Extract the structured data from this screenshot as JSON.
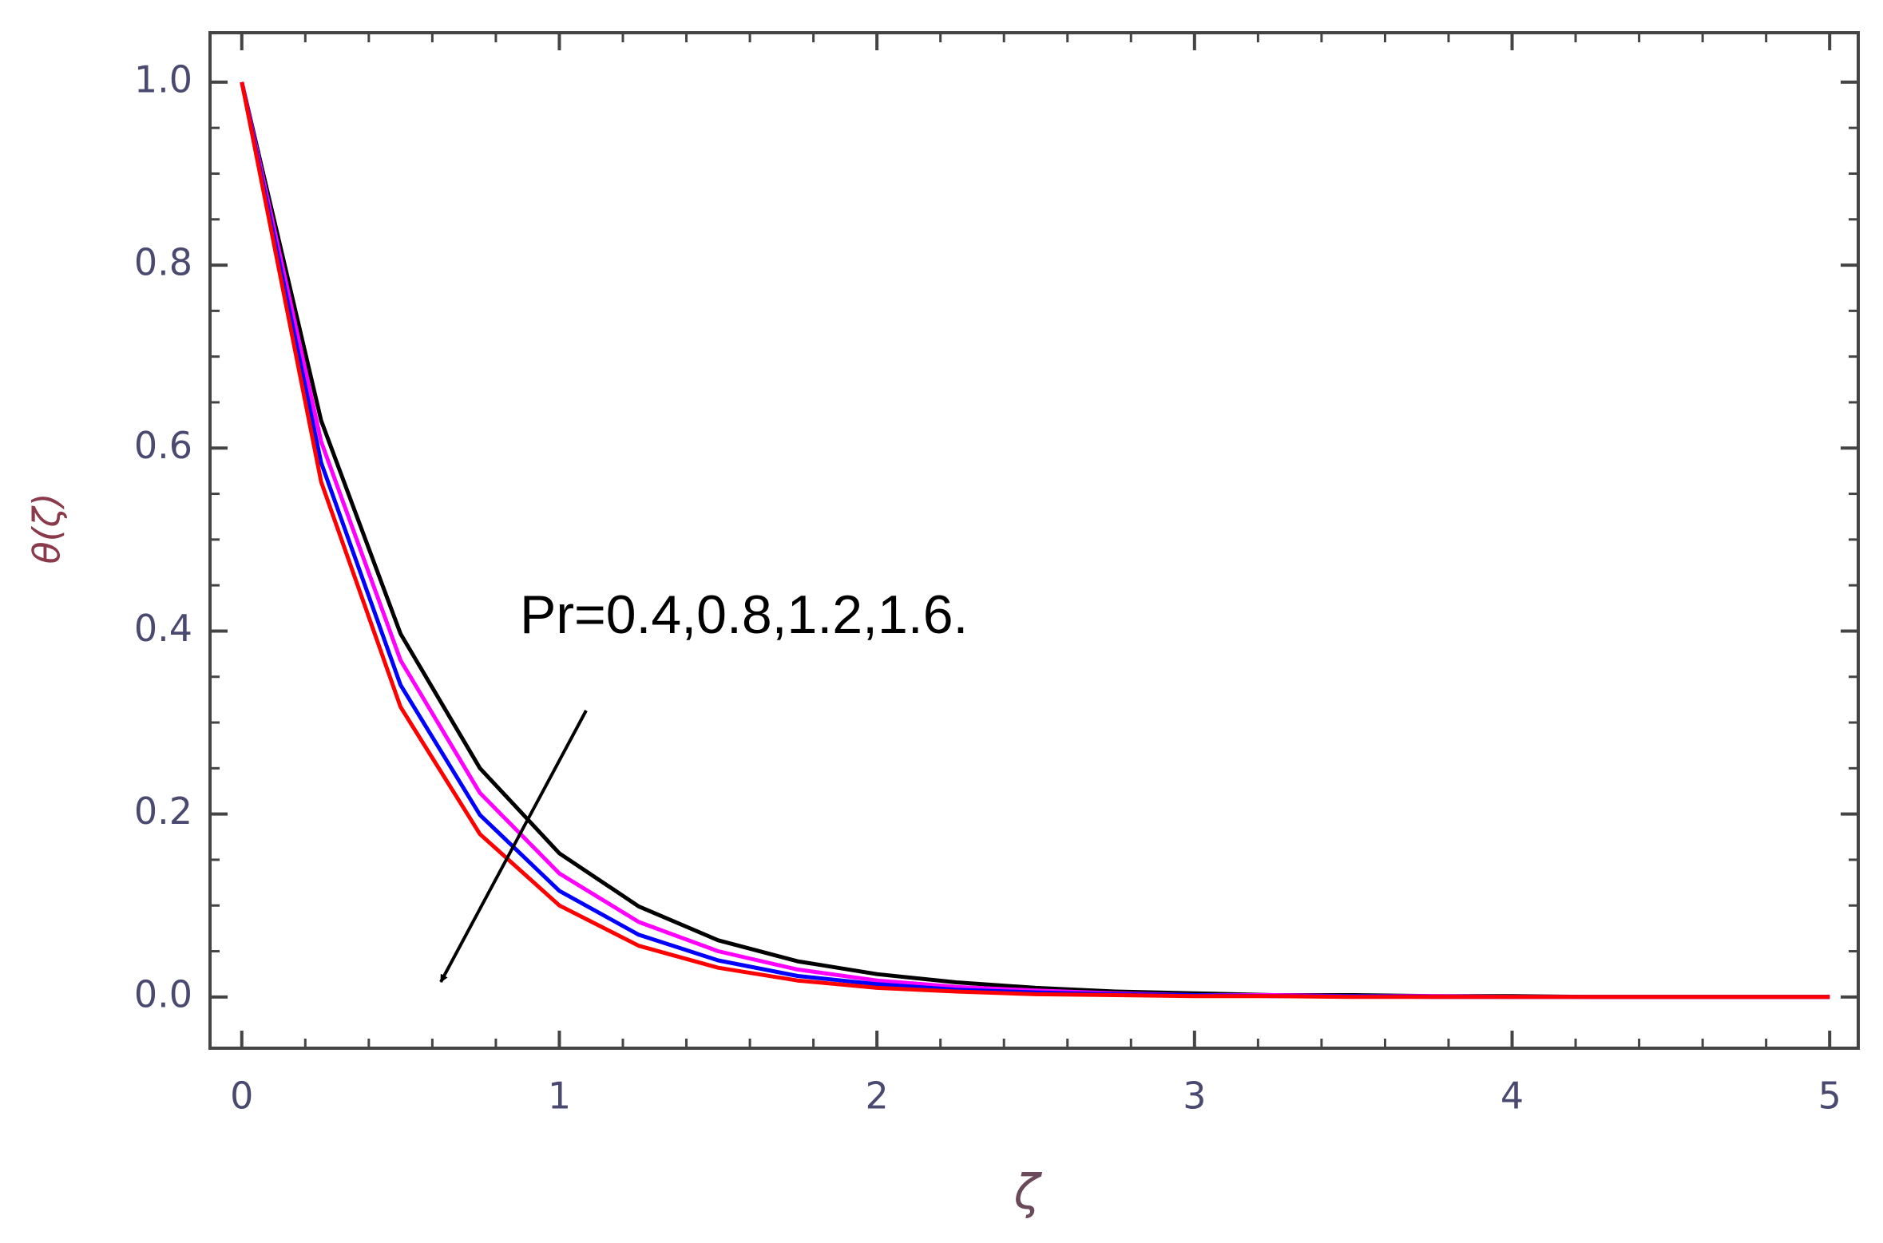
{
  "chart_data": {
    "type": "line",
    "x_label": "ζ",
    "y_label": "θ(ζ)",
    "annotation": "Pr=0.4,0.8,1.2,1.6.",
    "x": [
      0,
      0.25,
      0.5,
      0.75,
      1,
      1.25,
      1.5,
      1.75,
      2,
      2.25,
      2.5,
      2.75,
      3,
      3.25,
      3.5,
      3.75,
      4,
      4.25,
      4.5,
      4.75,
      5
    ],
    "series": [
      {
        "color": "#000000",
        "values": [
          1,
          0.63,
          0.397,
          0.25,
          0.157,
          0.099,
          0.062,
          0.039,
          0.025,
          0.016,
          0.01,
          0.006,
          0.004,
          0.002,
          0.002,
          0.001,
          0.001,
          0,
          0,
          0,
          0
        ]
      },
      {
        "color": "#ff00ff",
        "values": [
          1,
          0.607,
          0.368,
          0.223,
          0.135,
          0.082,
          0.05,
          0.03,
          0.018,
          0.011,
          0.007,
          0.004,
          0.002,
          0.002,
          0.001,
          0.001,
          0,
          0,
          0,
          0,
          0
        ]
      },
      {
        "color": "#0000ff",
        "values": [
          1,
          0.584,
          0.341,
          0.199,
          0.116,
          0.068,
          0.04,
          0.023,
          0.014,
          0.008,
          0.005,
          0.003,
          0.002,
          0.001,
          0.001,
          0,
          0,
          0,
          0,
          0,
          0
        ]
      },
      {
        "color": "#ff0000",
        "values": [
          1,
          0.563,
          0.317,
          0.178,
          0.1,
          0.056,
          0.032,
          0.018,
          0.01,
          0.006,
          0.003,
          0.002,
          0.001,
          0.001,
          0,
          0,
          0,
          0,
          0,
          0,
          0
        ]
      }
    ],
    "xlim": [
      -0.1,
      5.09
    ],
    "ylim": [
      -0.056,
      1.054
    ],
    "xticks": [
      0,
      1,
      2,
      3,
      4,
      5
    ],
    "yticks": [
      {
        "value": 0,
        "label": "0.0"
      },
      0.2,
      0.4,
      0.6,
      0.8,
      {
        "value": 1,
        "label": "1.0"
      }
    ]
  }
}
